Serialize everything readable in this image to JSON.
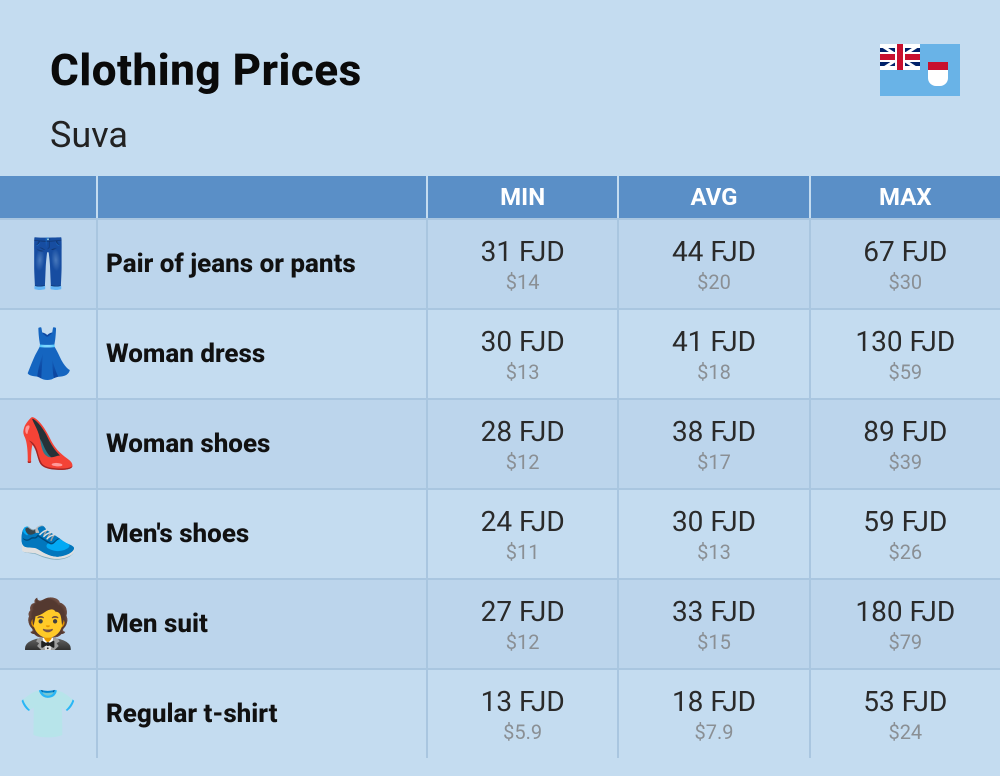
{
  "header": {
    "title": "Clothing Prices",
    "subtitle": "Suva",
    "flag_name": "fiji-flag"
  },
  "colors": {
    "page_bg": "#c4dcf0",
    "header_bar": "#5a8fc7",
    "header_text": "#ffffff",
    "row_alt_bg": "#bcd5ec",
    "row_base_bg": "#c4dcf0",
    "border": "#a9c6e0",
    "label_text": "#111111",
    "price_text": "#2a2a2a",
    "sub_text": "#8a8f94"
  },
  "table": {
    "columns": {
      "min": "MIN",
      "avg": "AVG",
      "max": "MAX"
    },
    "rows": [
      {
        "icon": "👖",
        "icon_name": "jeans-icon",
        "label": "Pair of jeans or pants",
        "min_fjd": "31 FJD",
        "min_usd": "$14",
        "avg_fjd": "44 FJD",
        "avg_usd": "$20",
        "max_fjd": "67 FJD",
        "max_usd": "$30"
      },
      {
        "icon": "👗",
        "icon_name": "dress-icon",
        "label": "Woman dress",
        "min_fjd": "30 FJD",
        "min_usd": "$13",
        "avg_fjd": "41 FJD",
        "avg_usd": "$18",
        "max_fjd": "130 FJD",
        "max_usd": "$59"
      },
      {
        "icon": "👠",
        "icon_name": "heel-icon",
        "label": "Woman shoes",
        "min_fjd": "28 FJD",
        "min_usd": "$12",
        "avg_fjd": "38 FJD",
        "avg_usd": "$17",
        "max_fjd": "89 FJD",
        "max_usd": "$39"
      },
      {
        "icon": "👟",
        "icon_name": "sneaker-icon",
        "label": "Men's shoes",
        "min_fjd": "24 FJD",
        "min_usd": "$11",
        "avg_fjd": "30 FJD",
        "avg_usd": "$13",
        "max_fjd": "59 FJD",
        "max_usd": "$26"
      },
      {
        "icon": "🤵",
        "icon_name": "suit-icon",
        "label": "Men suit",
        "min_fjd": "27 FJD",
        "min_usd": "$12",
        "avg_fjd": "33 FJD",
        "avg_usd": "$15",
        "max_fjd": "180 FJD",
        "max_usd": "$79"
      },
      {
        "icon": "👕",
        "icon_name": "tshirt-icon",
        "label": "Regular t-shirt",
        "min_fjd": "13 FJD",
        "min_usd": "$5.9",
        "avg_fjd": "18 FJD",
        "avg_usd": "$7.9",
        "max_fjd": "53 FJD",
        "max_usd": "$24"
      }
    ]
  }
}
